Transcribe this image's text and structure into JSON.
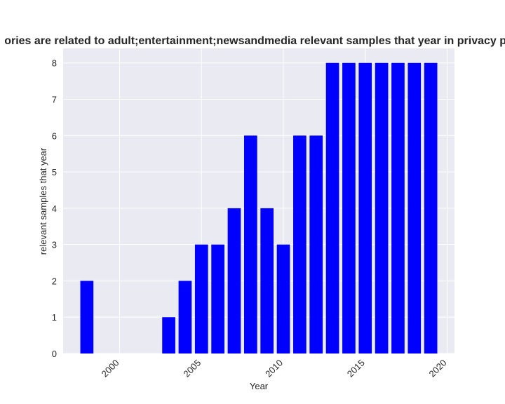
{
  "chart_data": {
    "type": "bar",
    "title": "ories are related to adult;entertainment;newsandmedia relevant samples that year in privacy po",
    "xlabel": "Year",
    "ylabel": "relevant samples that year",
    "x": [
      1998,
      1999,
      2000,
      2001,
      2002,
      2003,
      2004,
      2005,
      2006,
      2007,
      2008,
      2009,
      2010,
      2011,
      2012,
      2013,
      2014,
      2015,
      2016,
      2017,
      2018,
      2019
    ],
    "values": [
      2,
      0,
      0,
      0,
      0,
      1,
      2,
      3,
      3,
      4,
      6,
      4,
      3,
      6,
      6,
      8,
      8,
      8,
      8,
      8,
      8,
      8
    ],
    "xlim": [
      1996.55,
      2020.45
    ],
    "ylim": [
      0,
      8.4
    ],
    "xticks": [
      2000,
      2005,
      2010,
      2015,
      2020
    ],
    "xtick_labels": [
      "2000",
      "2005",
      "2010",
      "2015",
      "2020"
    ],
    "yticks": [
      0,
      1,
      2,
      3,
      4,
      5,
      6,
      7,
      8
    ],
    "ytick_labels": [
      "0",
      "1",
      "2",
      "3",
      "4",
      "5",
      "6",
      "7",
      "8"
    ],
    "grid": true,
    "bar_color": "#0000ff",
    "plot_bg": "#eaeaf2",
    "grid_color": "#ffffff"
  }
}
